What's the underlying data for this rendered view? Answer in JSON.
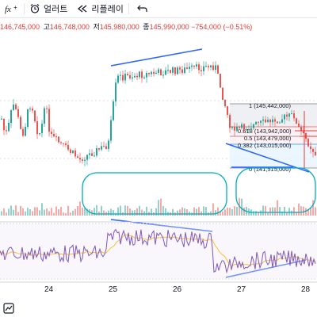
{
  "toolbar": {
    "fx_label": "",
    "alert_label": "얼러트",
    "replay_label": "리플레이"
  },
  "ohlc": {
    "open_value": "146,745,000",
    "high_key": "고",
    "high_value": "146,748,000",
    "low_key": "저",
    "low_value": "145,980,000",
    "close_key": "종",
    "close_value": "145,990,000",
    "change": "−754,000 (−0.51%)"
  },
  "fib": {
    "level_1": "1 (145,442,000)",
    "level_0618": "0.618 (143,942,000)",
    "level_05": "0.5 (143,479,000)",
    "level_0382": "0.382 (143,015,000)",
    "level_0": "0 (141,515,000)"
  },
  "x_axis": {
    "ticks": [
      "24",
      "25",
      "26",
      "27",
      "28"
    ]
  },
  "colors": {
    "up": "#26a69a",
    "down": "#ef5350",
    "trendline": "#2962ff",
    "annotation": "#00acc1",
    "rsi": "#7e57c2",
    "rsi_ma": "#fbc02d",
    "fib": "#787b86"
  },
  "icons": {
    "fx": "function-plus-icon",
    "alert": "alarm-clock-icon",
    "replay": "rewind-icon",
    "undo": "undo-arrow-icon",
    "bottom": "tradingview-logo-icon"
  }
}
